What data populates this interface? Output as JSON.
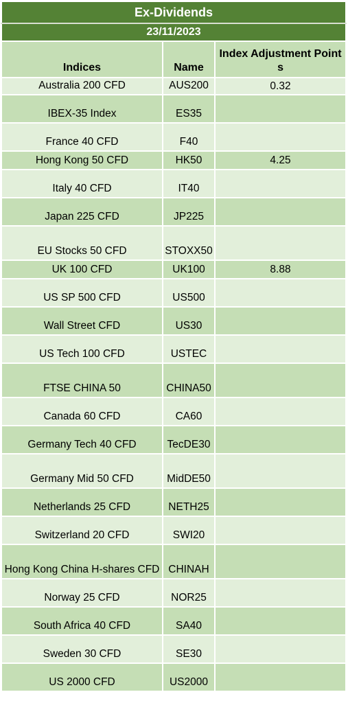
{
  "title": "Ex-Dividends",
  "date": "23/11/2023",
  "headers": {
    "indices": "Indices",
    "name": "Name",
    "points": "Index Adjustment Points"
  },
  "colors": {
    "header_bg": "#548235",
    "row_light": "#e2efda",
    "row_dark": "#c5deb5"
  },
  "rows": [
    {
      "index": "Australia 200 CFD",
      "name": "AUS200",
      "points": "0.32"
    },
    {
      "index": "IBEX-35 Index",
      "name": "ES35",
      "points": ""
    },
    {
      "index": "France 40 CFD",
      "name": "F40",
      "points": ""
    },
    {
      "index": "Hong Kong 50 CFD",
      "name": "HK50",
      "points": "4.25"
    },
    {
      "index": "Italy 40 CFD",
      "name": "IT40",
      "points": ""
    },
    {
      "index": "Japan 225 CFD",
      "name": "JP225",
      "points": ""
    },
    {
      "index": "EU Stocks 50 CFD",
      "name": "STOXX50",
      "points": ""
    },
    {
      "index": "UK 100 CFD",
      "name": "UK100",
      "points": "8.88"
    },
    {
      "index": "US SP 500 CFD",
      "name": "US500",
      "points": ""
    },
    {
      "index": "Wall Street CFD",
      "name": "US30",
      "points": ""
    },
    {
      "index": "US Tech 100 CFD",
      "name": "USTEC",
      "points": ""
    },
    {
      "index": "FTSE CHINA 50",
      "name": "CHINA50",
      "points": ""
    },
    {
      "index": "Canada 60 CFD",
      "name": "CA60",
      "points": ""
    },
    {
      "index": "Germany Tech 40 CFD",
      "name": "TecDE30",
      "points": ""
    },
    {
      "index": "Germany Mid 50 CFD",
      "name": "MidDE50",
      "points": ""
    },
    {
      "index": "Netherlands 25 CFD",
      "name": "NETH25",
      "points": ""
    },
    {
      "index": "Switzerland 20 CFD",
      "name": "SWI20",
      "points": ""
    },
    {
      "index": "Hong Kong China H-shares CFD",
      "name": "CHINAH",
      "points": ""
    },
    {
      "index": "Norway 25 CFD",
      "name": "NOR25",
      "points": ""
    },
    {
      "index": "South Africa 40 CFD",
      "name": "SA40",
      "points": ""
    },
    {
      "index": "Sweden 30 CFD",
      "name": "SE30",
      "points": ""
    },
    {
      "index": "US 2000 CFD",
      "name": "US2000",
      "points": ""
    }
  ]
}
